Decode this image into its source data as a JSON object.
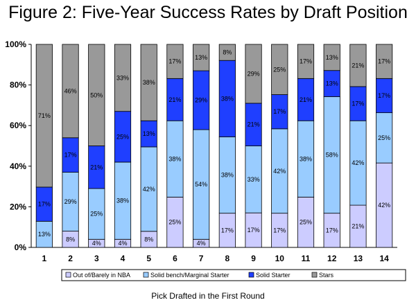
{
  "chart_data": {
    "type": "bar",
    "stacked": true,
    "normalized": true,
    "title": "Figure 2: Five-Year Success Rates by Draft Position",
    "xlabel": "Pick Drafted in the First Round",
    "ylabel": "",
    "categories": [
      "1",
      "2",
      "3",
      "4",
      "5",
      "6",
      "7",
      "8",
      "9",
      "10",
      "11",
      "12",
      "13",
      "14"
    ],
    "ylim": [
      0,
      100
    ],
    "yticks": [
      "0%",
      "20%",
      "40%",
      "60%",
      "80%",
      "100%"
    ],
    "grid": false,
    "legend": "bottom",
    "series": [
      {
        "name": "Out of/Barely in NBA",
        "color": "#ccccff",
        "values": [
          0,
          8,
          4,
          4,
          8,
          25,
          4,
          17,
          17,
          17,
          25,
          17,
          21,
          42
        ]
      },
      {
        "name": "Solid bench/Marginal Starter",
        "color": "#99ccff",
        "values": [
          13,
          29,
          25,
          38,
          42,
          38,
          54,
          38,
          33,
          42,
          38,
          58,
          42,
          25
        ]
      },
      {
        "name": "Solid Starter",
        "color": "#1f3fff",
        "values": [
          17,
          17,
          21,
          25,
          13,
          21,
          29,
          38,
          21,
          17,
          21,
          13,
          17,
          17
        ]
      },
      {
        "name": "Stars",
        "color": "#999999",
        "values": [
          71,
          46,
          50,
          33,
          38,
          17,
          13,
          8,
          29,
          25,
          17,
          13,
          21,
          17
        ]
      }
    ]
  }
}
